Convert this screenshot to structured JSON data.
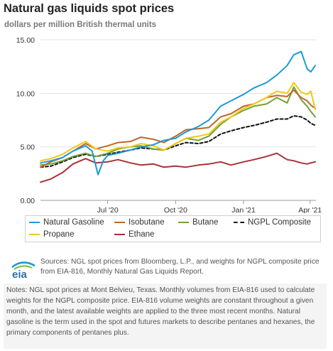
{
  "header": {
    "title": "Natural gas liquids spot prices",
    "subtitle": "dollars per million British thermal units"
  },
  "chart_data": {
    "type": "line",
    "xlim": [
      "2020-04-01",
      "2021-04-09"
    ],
    "ylim": [
      0,
      15
    ],
    "yticks": [
      {
        "value": 0,
        "label": "0.00"
      },
      {
        "value": 5,
        "label": "5.00"
      },
      {
        "value": 10,
        "label": "10.00"
      },
      {
        "value": 15,
        "label": "15.00"
      }
    ],
    "xticks": [
      {
        "value": "2020-07-01",
        "label": "Jul '20"
      },
      {
        "value": "2020-10-01",
        "label": "Oct '20"
      },
      {
        "value": "2021-01-01",
        "label": "Jan '21"
      },
      {
        "value": "2021-04-01",
        "label": "Apr '21"
      }
    ],
    "grid": "horizontal",
    "legend_position": "bottom",
    "series": [
      {
        "name": "Natural Gasoline",
        "color": "#1b9ad6",
        "style": "solid",
        "points": [
          [
            "2020-04-01",
            3.5
          ],
          [
            "2020-04-15",
            3.7
          ],
          [
            "2020-05-01",
            4.0
          ],
          [
            "2020-05-15",
            4.6
          ],
          [
            "2020-06-01",
            5.1
          ],
          [
            "2020-06-10",
            4.6
          ],
          [
            "2020-06-18",
            2.4
          ],
          [
            "2020-06-25",
            3.7
          ],
          [
            "2020-07-01",
            4.2
          ],
          [
            "2020-07-15",
            4.4
          ],
          [
            "2020-08-01",
            4.7
          ],
          [
            "2020-08-15",
            5.0
          ],
          [
            "2020-09-01",
            5.2
          ],
          [
            "2020-09-15",
            5.6
          ],
          [
            "2020-10-01",
            5.8
          ],
          [
            "2020-10-15",
            6.4
          ],
          [
            "2020-11-01",
            6.9
          ],
          [
            "2020-11-15",
            7.5
          ],
          [
            "2020-12-01",
            8.8
          ],
          [
            "2020-12-15",
            9.3
          ],
          [
            "2021-01-01",
            9.9
          ],
          [
            "2021-01-15",
            10.5
          ],
          [
            "2021-02-01",
            11.0
          ],
          [
            "2021-02-15",
            11.7
          ],
          [
            "2021-03-01",
            12.6
          ],
          [
            "2021-03-10",
            13.6
          ],
          [
            "2021-03-20",
            13.9
          ],
          [
            "2021-03-28",
            12.3
          ],
          [
            "2021-04-02",
            12.0
          ],
          [
            "2021-04-08",
            12.6
          ]
        ]
      },
      {
        "name": "Isobutane",
        "color": "#c0662a",
        "style": "solid",
        "points": [
          [
            "2020-04-01",
            3.1
          ],
          [
            "2020-04-15",
            3.6
          ],
          [
            "2020-05-01",
            4.0
          ],
          [
            "2020-05-15",
            4.6
          ],
          [
            "2020-06-01",
            5.3
          ],
          [
            "2020-06-15",
            4.8
          ],
          [
            "2020-07-01",
            5.1
          ],
          [
            "2020-07-15",
            5.4
          ],
          [
            "2020-08-01",
            5.5
          ],
          [
            "2020-08-15",
            5.9
          ],
          [
            "2020-09-01",
            5.7
          ],
          [
            "2020-09-15",
            5.4
          ],
          [
            "2020-10-01",
            6.0
          ],
          [
            "2020-10-15",
            6.6
          ],
          [
            "2020-11-01",
            6.7
          ],
          [
            "2020-11-15",
            6.8
          ],
          [
            "2020-12-01",
            7.8
          ],
          [
            "2020-12-15",
            8.1
          ],
          [
            "2021-01-01",
            8.8
          ],
          [
            "2021-01-15",
            9.0
          ],
          [
            "2021-02-01",
            9.6
          ],
          [
            "2021-02-15",
            9.8
          ],
          [
            "2021-03-01",
            9.7
          ],
          [
            "2021-03-10",
            10.3
          ],
          [
            "2021-03-20",
            9.6
          ],
          [
            "2021-03-28",
            9.3
          ],
          [
            "2021-04-02",
            8.9
          ],
          [
            "2021-04-08",
            8.6
          ]
        ]
      },
      {
        "name": "Butane",
        "color": "#70a23a",
        "style": "solid",
        "points": [
          [
            "2020-04-01",
            3.3
          ],
          [
            "2020-04-15",
            3.4
          ],
          [
            "2020-05-01",
            3.7
          ],
          [
            "2020-05-15",
            4.1
          ],
          [
            "2020-06-01",
            4.4
          ],
          [
            "2020-06-15",
            4.1
          ],
          [
            "2020-07-01",
            4.4
          ],
          [
            "2020-07-15",
            4.8
          ],
          [
            "2020-08-01",
            5.0
          ],
          [
            "2020-08-15",
            5.1
          ],
          [
            "2020-09-01",
            4.8
          ],
          [
            "2020-09-15",
            4.7
          ],
          [
            "2020-10-01",
            5.3
          ],
          [
            "2020-10-15",
            5.8
          ],
          [
            "2020-11-01",
            5.6
          ],
          [
            "2020-11-15",
            6.0
          ],
          [
            "2020-12-01",
            7.1
          ],
          [
            "2020-12-15",
            7.8
          ],
          [
            "2021-01-01",
            8.4
          ],
          [
            "2021-01-15",
            8.8
          ],
          [
            "2021-02-01",
            9.0
          ],
          [
            "2021-02-15",
            9.6
          ],
          [
            "2021-03-01",
            9.1
          ],
          [
            "2021-03-10",
            10.6
          ],
          [
            "2021-03-20",
            9.4
          ],
          [
            "2021-03-28",
            8.8
          ],
          [
            "2021-04-02",
            8.3
          ],
          [
            "2021-04-08",
            7.8
          ]
        ]
      },
      {
        "name": "NGPL Composite",
        "color": "#111111",
        "style": "dashed",
        "points": [
          [
            "2020-04-01",
            3.1
          ],
          [
            "2020-04-15",
            3.2
          ],
          [
            "2020-05-01",
            3.6
          ],
          [
            "2020-05-15",
            4.0
          ],
          [
            "2020-06-01",
            4.3
          ],
          [
            "2020-06-15",
            4.1
          ],
          [
            "2020-07-01",
            4.3
          ],
          [
            "2020-07-15",
            4.5
          ],
          [
            "2020-08-01",
            4.7
          ],
          [
            "2020-08-15",
            4.9
          ],
          [
            "2020-09-01",
            4.8
          ],
          [
            "2020-09-15",
            4.7
          ],
          [
            "2020-10-01",
            5.1
          ],
          [
            "2020-10-15",
            5.4
          ],
          [
            "2020-11-01",
            5.3
          ],
          [
            "2020-11-15",
            5.5
          ],
          [
            "2020-12-01",
            6.2
          ],
          [
            "2020-12-15",
            6.5
          ],
          [
            "2021-01-01",
            6.8
          ],
          [
            "2021-01-15",
            7.0
          ],
          [
            "2021-02-01",
            7.3
          ],
          [
            "2021-02-15",
            7.6
          ],
          [
            "2021-03-01",
            7.6
          ],
          [
            "2021-03-10",
            7.9
          ],
          [
            "2021-03-20",
            7.8
          ],
          [
            "2021-03-28",
            7.5
          ],
          [
            "2021-04-02",
            7.2
          ],
          [
            "2021-04-08",
            7.0
          ]
        ]
      },
      {
        "name": "Propane",
        "color": "#f2c811",
        "style": "solid",
        "points": [
          [
            "2020-04-01",
            3.7
          ],
          [
            "2020-04-15",
            3.9
          ],
          [
            "2020-05-01",
            4.3
          ],
          [
            "2020-05-15",
            4.9
          ],
          [
            "2020-06-01",
            5.5
          ],
          [
            "2020-06-15",
            4.8
          ],
          [
            "2020-07-01",
            4.6
          ],
          [
            "2020-07-15",
            4.9
          ],
          [
            "2020-08-01",
            5.0
          ],
          [
            "2020-08-15",
            5.3
          ],
          [
            "2020-09-01",
            5.1
          ],
          [
            "2020-09-15",
            4.7
          ],
          [
            "2020-10-01",
            5.3
          ],
          [
            "2020-10-15",
            5.8
          ],
          [
            "2020-11-01",
            6.0
          ],
          [
            "2020-11-15",
            6.2
          ],
          [
            "2020-12-01",
            7.3
          ],
          [
            "2020-12-15",
            7.8
          ],
          [
            "2021-01-01",
            8.6
          ],
          [
            "2021-01-15",
            9.0
          ],
          [
            "2021-02-01",
            9.6
          ],
          [
            "2021-02-15",
            10.2
          ],
          [
            "2021-03-01",
            10.0
          ],
          [
            "2021-03-10",
            11.0
          ],
          [
            "2021-03-20",
            10.1
          ],
          [
            "2021-03-28",
            9.9
          ],
          [
            "2021-04-02",
            10.2
          ],
          [
            "2021-04-08",
            8.5
          ]
        ]
      },
      {
        "name": "Ethane",
        "color": "#a83236",
        "style": "solid",
        "points": [
          [
            "2020-04-01",
            1.7
          ],
          [
            "2020-04-15",
            2.0
          ],
          [
            "2020-05-01",
            2.6
          ],
          [
            "2020-05-15",
            3.4
          ],
          [
            "2020-06-01",
            3.9
          ],
          [
            "2020-06-15",
            3.5
          ],
          [
            "2020-07-01",
            3.6
          ],
          [
            "2020-07-15",
            3.8
          ],
          [
            "2020-08-01",
            3.5
          ],
          [
            "2020-08-15",
            3.3
          ],
          [
            "2020-09-01",
            3.4
          ],
          [
            "2020-09-15",
            3.1
          ],
          [
            "2020-10-01",
            3.2
          ],
          [
            "2020-10-15",
            3.1
          ],
          [
            "2020-11-01",
            3.3
          ],
          [
            "2020-11-15",
            3.4
          ],
          [
            "2020-12-01",
            3.6
          ],
          [
            "2020-12-15",
            3.3
          ],
          [
            "2021-01-01",
            3.6
          ],
          [
            "2021-01-15",
            3.8
          ],
          [
            "2021-02-01",
            4.1
          ],
          [
            "2021-02-15",
            4.4
          ],
          [
            "2021-03-01",
            3.8
          ],
          [
            "2021-03-10",
            3.7
          ],
          [
            "2021-03-20",
            3.5
          ],
          [
            "2021-03-28",
            3.4
          ],
          [
            "2021-04-02",
            3.5
          ],
          [
            "2021-04-08",
            3.6
          ]
        ]
      }
    ]
  },
  "legend": {
    "items": [
      {
        "label": "Natural Gasoline",
        "color": "#1b9ad6",
        "style": "solid"
      },
      {
        "label": "Isobutane",
        "color": "#c0662a",
        "style": "solid"
      },
      {
        "label": "Butane",
        "color": "#70a23a",
        "style": "solid"
      },
      {
        "label": "NGPL Composite",
        "color": "#111111",
        "style": "dashed"
      },
      {
        "label": "Propane",
        "color": "#f2c811",
        "style": "solid"
      },
      {
        "label": "Ethane",
        "color": "#a83236",
        "style": "solid"
      }
    ]
  },
  "footer": {
    "logo_text": "eia",
    "sources": "Sources: NGL spot prices from Bloomberg, L.P., and weights for NGPL composite price from EIA-816, Monthly Natural Gas Liquids Report.",
    "notes": "Notes: NGL spot prices at Mont Belvieu, Texas. Monthly volumes from EIA-816 used to calculate weights for the NGPL composite price. EIA-816 volume weights are constant throughout a given month, and the latest available weights are applied to the three most recent months. Natural gasoline is the term used in the spot and futures markets to describe pentanes and hexanes, the primary components of pentanes plus."
  }
}
